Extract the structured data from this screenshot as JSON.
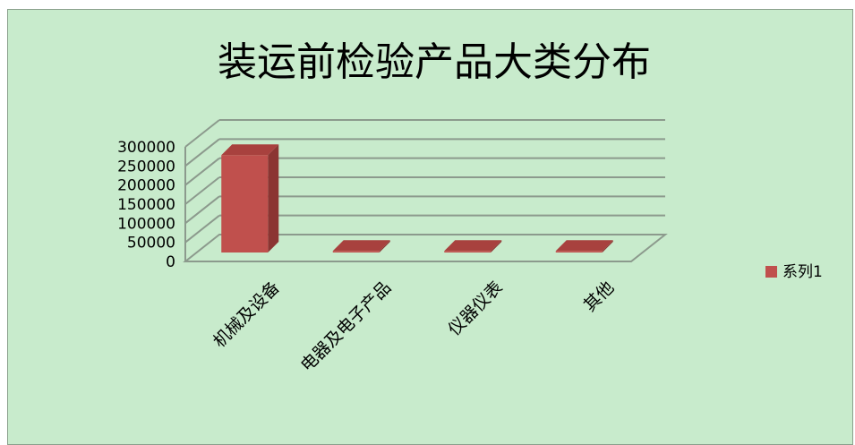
{
  "chart_data": {
    "type": "bar",
    "title": "装运前检验产品大类分布",
    "categories": [
      "机械及设备",
      "电器及电子产品",
      "仪器仪表",
      "其他"
    ],
    "series": [
      {
        "name": "系列1",
        "values": [
          255000,
          4000,
          4000,
          4000
        ]
      }
    ],
    "ylim": [
      0,
      300000
    ],
    "yticks": [
      "300000",
      "250000",
      "200000",
      "150000",
      "100000",
      "50000",
      "0"
    ],
    "grid": true,
    "legend": "right",
    "colors": {
      "bar": "#c0504d",
      "background": "#c8ebcc"
    }
  }
}
